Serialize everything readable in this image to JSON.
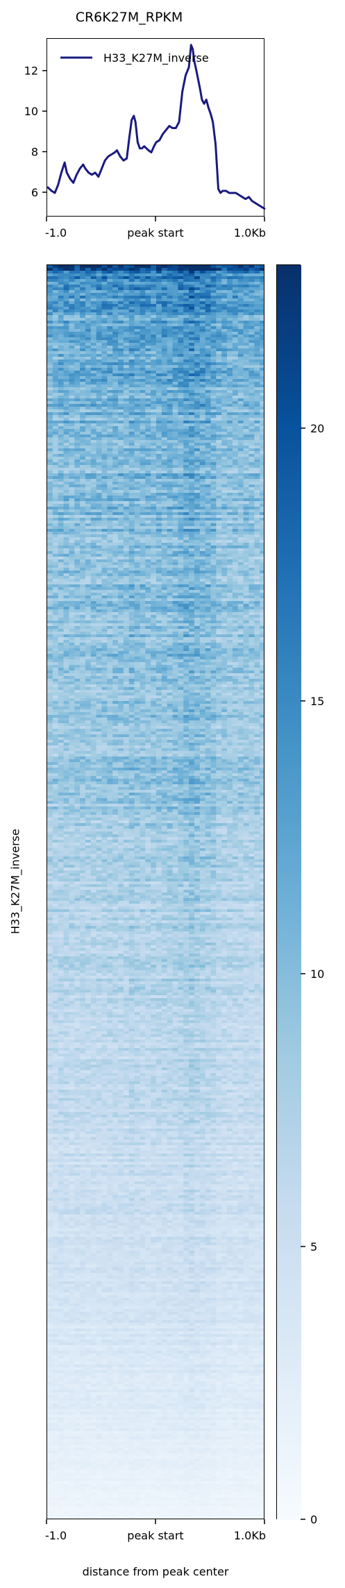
{
  "chart_data": [
    {
      "type": "line",
      "title": "CR6K27M_RPKM",
      "legend": {
        "entries": [
          "H33_K27M_inverse"
        ],
        "placement": "top-left"
      },
      "x_tick_labels": [
        "-1.0",
        "peak start",
        "1.0Kb"
      ],
      "y_ticks": [
        6,
        8,
        10,
        12
      ],
      "ylim": [
        4.8,
        13.6
      ],
      "xlim": [
        -1000,
        1000
      ],
      "grid": false,
      "color": "#1a1a80",
      "series": [
        {
          "name": "H33_K27M_inverse",
          "x": [
            -1000,
            -960,
            -930,
            -900,
            -870,
            -840,
            -820,
            -790,
            -760,
            -730,
            -700,
            -670,
            -650,
            -620,
            -590,
            -560,
            -530,
            -500,
            -470,
            -440,
            -410,
            -380,
            -360,
            -330,
            -300,
            -270,
            -245,
            -225,
            -205,
            -190,
            -170,
            -150,
            -130,
            -110,
            -90,
            -70,
            -45,
            -20,
            0,
            30,
            60,
            90,
            120,
            150,
            180,
            210,
            240,
            270,
            300,
            320,
            335,
            350,
            370,
            385,
            400,
            420,
            440,
            460,
            480,
            500,
            520,
            545,
            570,
            590,
            610,
            640,
            670,
            700,
            730,
            760,
            790,
            820,
            850,
            880,
            910,
            940,
            970,
            1000
          ],
          "values": [
            6.3,
            6.1,
            6.0,
            6.4,
            7.0,
            7.5,
            7.0,
            6.7,
            6.5,
            6.9,
            7.2,
            7.4,
            7.2,
            7.0,
            6.9,
            7.0,
            6.8,
            7.2,
            7.6,
            7.8,
            7.9,
            8.0,
            8.1,
            7.8,
            7.6,
            7.7,
            8.8,
            9.6,
            9.8,
            9.5,
            8.5,
            8.2,
            8.2,
            8.3,
            8.2,
            8.1,
            8.0,
            8.3,
            8.5,
            8.6,
            8.9,
            9.1,
            9.3,
            9.2,
            9.2,
            9.5,
            11.0,
            11.8,
            12.2,
            13.3,
            13.1,
            12.5,
            12.0,
            11.6,
            11.2,
            10.6,
            10.4,
            10.6,
            10.2,
            9.9,
            9.5,
            8.4,
            6.2,
            6.0,
            6.1,
            6.1,
            6.0,
            6.0,
            6.0,
            5.9,
            5.8,
            5.7,
            5.8,
            5.6,
            5.5,
            5.4,
            5.3,
            5.2
          ]
        }
      ]
    },
    {
      "type": "heatmap",
      "ylabel": "H33_K27M_inverse",
      "xlabel": "distance from peak center",
      "x_tick_labels": [
        "-1.0",
        "peak start",
        "1.0Kb"
      ],
      "colormap": "Blues",
      "color_low": "#f7fbff",
      "color_high": "#08306b",
      "colorbar": {
        "ticks": [
          0,
          5,
          10,
          15,
          20
        ],
        "vmin": 0,
        "vmax": 23
      },
      "rows_sorted_by_mean": "descending",
      "row_mean_profile": {
        "row_fraction": [
          0.0,
          0.01,
          0.03,
          0.1,
          0.2,
          0.3,
          0.4,
          0.5,
          0.6,
          0.7,
          0.8,
          0.9,
          0.95,
          1.0
        ],
        "mean_value": [
          21,
          15,
          13,
          11,
          10,
          9.5,
          9,
          7.5,
          6.5,
          5.5,
          4.5,
          3,
          2,
          1
        ]
      }
    }
  ]
}
